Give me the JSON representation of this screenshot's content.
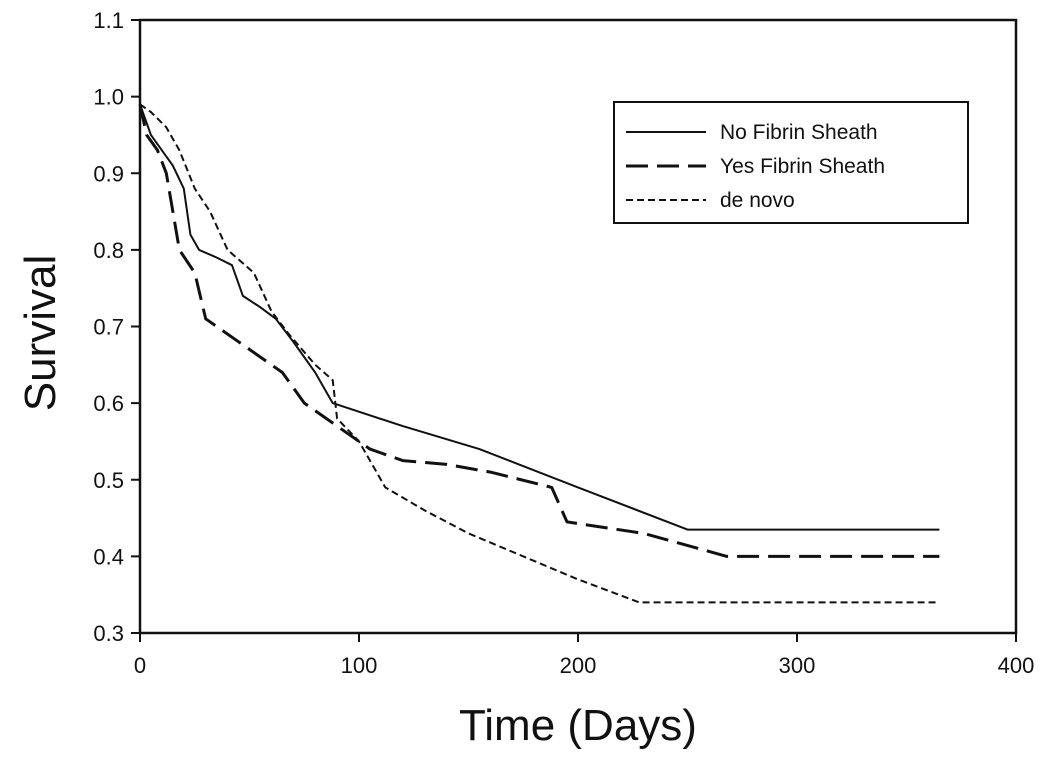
{
  "chart_data": {
    "type": "line",
    "title": "",
    "xlabel": "Time (Days)",
    "ylabel": "Survival",
    "xlim": [
      0,
      400
    ],
    "ylim": [
      0.3,
      1.1
    ],
    "xticks": [
      0,
      100,
      200,
      300,
      400
    ],
    "xtick_labels": [
      "0",
      "100",
      "200",
      "300",
      "400"
    ],
    "yticks": [
      0.3,
      0.4,
      0.5,
      0.6,
      0.7,
      0.8,
      0.9,
      1.0,
      1.1
    ],
    "ytick_labels": [
      "0.3",
      "0.4",
      "0.5",
      "0.6",
      "0.7",
      "0.8",
      "0.9",
      "1.0",
      "1.1"
    ],
    "grid": false,
    "legend_position": "top-right",
    "series": [
      {
        "name": "No Fibrin Sheath",
        "style": "solid",
        "color": "#111111",
        "points": [
          [
            0,
            0.99
          ],
          [
            5,
            0.95
          ],
          [
            10,
            0.93
          ],
          [
            15,
            0.91
          ],
          [
            20,
            0.88
          ],
          [
            23,
            0.82
          ],
          [
            27,
            0.8
          ],
          [
            35,
            0.79
          ],
          [
            42,
            0.78
          ],
          [
            47,
            0.74
          ],
          [
            55,
            0.725
          ],
          [
            62,
            0.71
          ],
          [
            70,
            0.68
          ],
          [
            80,
            0.64
          ],
          [
            88,
            0.6
          ],
          [
            120,
            0.57
          ],
          [
            155,
            0.54
          ],
          [
            200,
            0.49
          ],
          [
            250,
            0.435
          ],
          [
            365,
            0.435
          ]
        ]
      },
      {
        "name": "Yes Fibrin Sheath",
        "style": "dashed",
        "color": "#111111",
        "points": [
          [
            0,
            0.99
          ],
          [
            3,
            0.95
          ],
          [
            8,
            0.93
          ],
          [
            12,
            0.9
          ],
          [
            18,
            0.8
          ],
          [
            25,
            0.77
          ],
          [
            30,
            0.71
          ],
          [
            45,
            0.68
          ],
          [
            55,
            0.66
          ],
          [
            65,
            0.64
          ],
          [
            75,
            0.6
          ],
          [
            90,
            0.57
          ],
          [
            105,
            0.54
          ],
          [
            120,
            0.525
          ],
          [
            140,
            0.52
          ],
          [
            160,
            0.51
          ],
          [
            188,
            0.49
          ],
          [
            195,
            0.445
          ],
          [
            230,
            0.43
          ],
          [
            268,
            0.4
          ],
          [
            365,
            0.4
          ]
        ]
      },
      {
        "name": "de novo",
        "style": "dotted",
        "color": "#111111",
        "points": [
          [
            0,
            0.99
          ],
          [
            5,
            0.98
          ],
          [
            12,
            0.96
          ],
          [
            18,
            0.93
          ],
          [
            25,
            0.88
          ],
          [
            32,
            0.85
          ],
          [
            40,
            0.8
          ],
          [
            52,
            0.77
          ],
          [
            60,
            0.72
          ],
          [
            68,
            0.69
          ],
          [
            80,
            0.65
          ],
          [
            88,
            0.63
          ],
          [
            90,
            0.58
          ],
          [
            100,
            0.55
          ],
          [
            112,
            0.49
          ],
          [
            130,
            0.46
          ],
          [
            150,
            0.43
          ],
          [
            175,
            0.4
          ],
          [
            200,
            0.37
          ],
          [
            228,
            0.34
          ],
          [
            365,
            0.34
          ]
        ]
      }
    ]
  }
}
